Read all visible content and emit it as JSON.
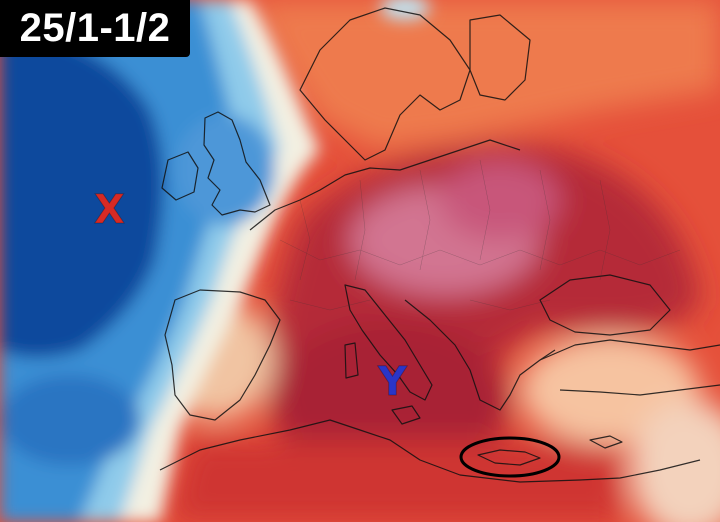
{
  "title": "25/1-1/2",
  "markers": {
    "x": {
      "label": "X",
      "color": "#d62a25"
    },
    "y": {
      "label": "Y",
      "color": "#2b35c8"
    }
  },
  "highlight": {
    "shape": "ellipse",
    "area": "Crete",
    "stroke": "#000000"
  },
  "colors": {
    "ocean_cold_deep": "#0a3f91",
    "ocean_cold": "#1f6fc4",
    "cold_light": "#7ec3ea",
    "neutral": "#f4f1e6",
    "warm_light": "#f6b38f",
    "warm": "#e8513a",
    "warm_strong": "#d32f2b",
    "hot_deep": "#a51d3a",
    "hot_pink": "#d9839f"
  }
}
